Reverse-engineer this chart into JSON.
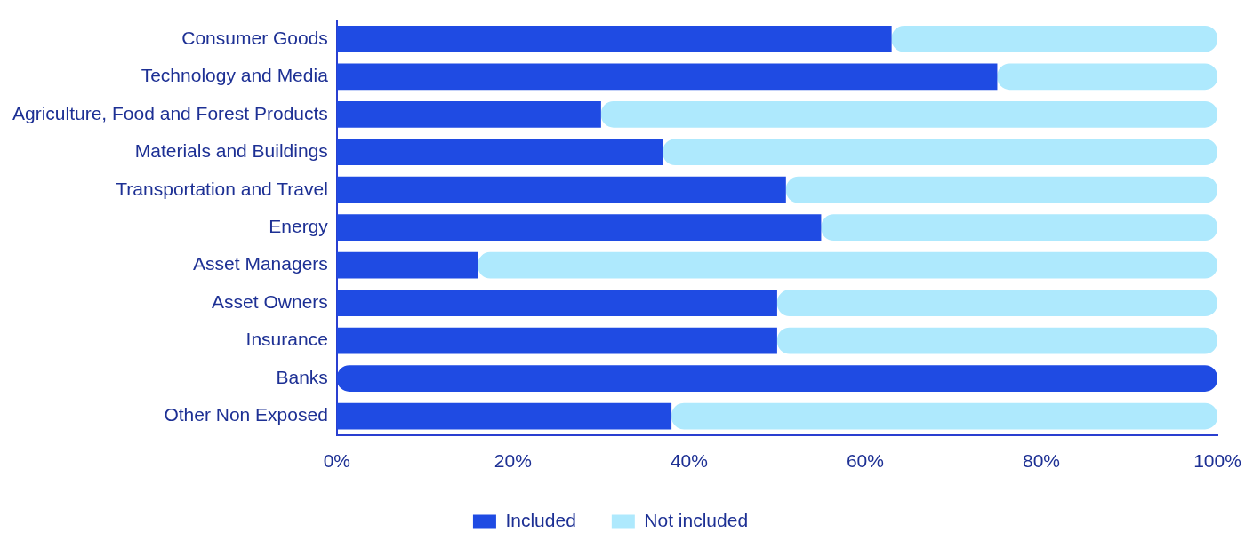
{
  "chart_data": {
    "type": "bar",
    "orientation": "horizontal",
    "stacked": true,
    "categories": [
      "Consumer Goods",
      "Technology and Media",
      "Agriculture, Food and Forest Products",
      "Materials and Buildings",
      "Transportation and Travel",
      "Energy",
      "Asset Managers",
      "Asset Owners",
      "Insurance",
      "Banks",
      "Other Non Exposed"
    ],
    "series": [
      {
        "name": "Included",
        "color": "#1f4be3",
        "values": [
          63,
          75,
          30,
          37,
          51,
          55,
          16,
          50,
          50,
          100,
          38
        ]
      },
      {
        "name": "Not included",
        "color": "#aee9fd",
        "values": [
          37,
          25,
          70,
          63,
          49,
          45,
          84,
          50,
          50,
          0,
          62
        ]
      }
    ],
    "xlim": [
      0,
      100
    ],
    "xticks": [
      {
        "value": 0,
        "label": "0%"
      },
      {
        "value": 20,
        "label": "20%"
      },
      {
        "value": 40,
        "label": "40%"
      },
      {
        "value": 60,
        "label": "60%"
      },
      {
        "value": 80,
        "label": "80%"
      },
      {
        "value": 100,
        "label": "100%"
      }
    ],
    "grid": false,
    "legend": "bottom"
  }
}
